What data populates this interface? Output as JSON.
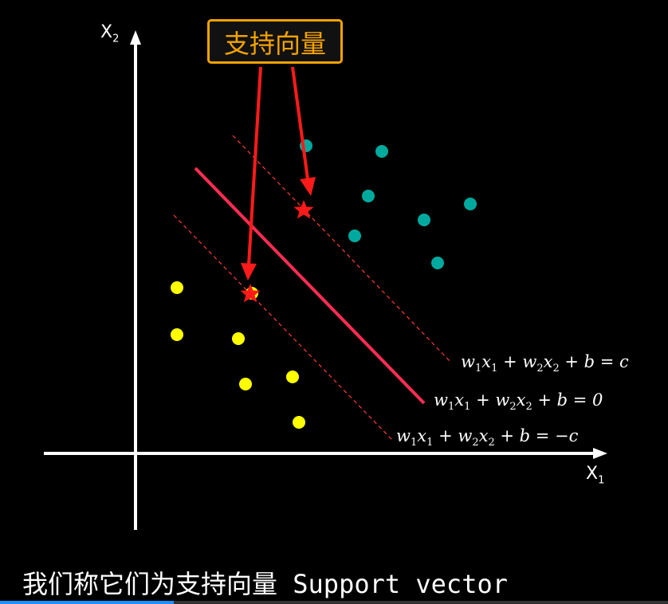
{
  "callout": {
    "label": "支持向量"
  },
  "axes": {
    "x_label": "X",
    "x_sub": "1",
    "y_label": "X",
    "y_sub": "2"
  },
  "equations": {
    "upper": {
      "prefix": "w",
      "s1": "1",
      "x1": "x",
      "s2": "1",
      "mid": " + w",
      "s3": "2",
      "x2": "x",
      "s4": "2",
      "tail": " + b = c"
    },
    "middle": {
      "prefix": "w",
      "s1": "1",
      "x1": "x",
      "s2": "1",
      "mid": " + w",
      "s3": "2",
      "x2": "x",
      "s4": "2",
      "tail": " + b = 0"
    },
    "lower": {
      "prefix": "w",
      "s1": "1",
      "x1": "x",
      "s2": "1",
      "mid": " + w",
      "s3": "2",
      "x2": "x",
      "s4": "2",
      "tail": " + b = −c"
    }
  },
  "subtitle": "我们称它们为支持向量 Support vector",
  "colors": {
    "class_a": "#00a99d",
    "class_b": "#ffff00",
    "hyperplane": "#ff2d55",
    "margin": "#ff3b3b",
    "arrow": "#ff1a1a",
    "star": "#ff1a1a"
  },
  "progress": {
    "fraction": 0.26
  }
}
